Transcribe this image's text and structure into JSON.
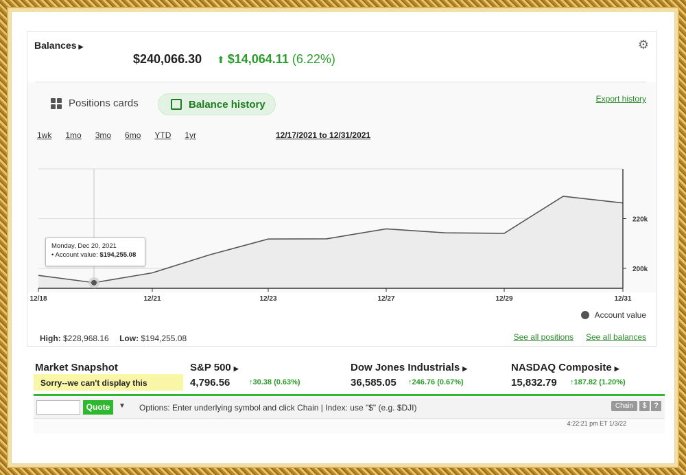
{
  "balances": {
    "title": "Balances",
    "value": "$240,066.30",
    "change_amount": "$14,064.11",
    "change_percent": "(6.22%)"
  },
  "tabs": {
    "positions_label": "Positions cards",
    "balance_label": "Balance history"
  },
  "export_label": "Export history",
  "ranges": [
    "1wk",
    "1mo",
    "3mo",
    "6mo",
    "YTD",
    "1yr"
  ],
  "date_range": "12/17/2021 to 12/31/2021",
  "tooltip": {
    "date": "Monday, Dec 20, 2021",
    "label": "Account value:",
    "value": "$194,255.08"
  },
  "legend": "Account value",
  "stats": {
    "high_label": "High:",
    "high_value": "$228,968.16",
    "low_label": "Low:",
    "low_value": "$194,255.08"
  },
  "links": {
    "see_positions": "See all positions",
    "see_balances": "See all balances"
  },
  "chart_data": {
    "type": "area",
    "x": [
      "12/18",
      "12/20",
      "12/21",
      "12/22",
      "12/23",
      "12/26",
      "12/27",
      "12/28",
      "12/29",
      "12/30",
      "12/31"
    ],
    "x_ticks": [
      "12/18",
      "12/21",
      "12/23",
      "12/27",
      "12/29",
      "12/31"
    ],
    "series": [
      {
        "values": [
          197200,
          194255,
          198200,
          205500,
          211800,
          211900,
          215900,
          214300,
          214100,
          228968,
          226300
        ]
      }
    ],
    "y_ticks": [
      "200k",
      "220k"
    ],
    "ylim": [
      192000,
      240000
    ],
    "grid": true,
    "area_color": "#ececec",
    "line_color": "#555555",
    "highlight_index": 1
  },
  "market_snapshot": {
    "title": "Market Snapshot",
    "sorry": "Sorry--we can't display this",
    "indices": [
      {
        "name": "S&P 500",
        "value": "4,796.56",
        "change": "30.38 (0.63%)"
      },
      {
        "name": "Dow Jones Industrials",
        "value": "36,585.05",
        "change": "246.76 (0.67%)"
      },
      {
        "name": "NASDAQ Composite",
        "value": "15,832.79",
        "change": "187.82 (1.20%)"
      }
    ]
  },
  "quote_bar": {
    "button": "Quote",
    "hint": "Options: Enter underlying symbol and click Chain | Index: use \"$\" (e.g. $DJI)",
    "chain": "Chain",
    "dollar": "$",
    "help": "?",
    "timestamp": "4:22:21 pm ET 1/3/22"
  },
  "colors": {
    "accent_green": "#2a9c2a",
    "bar_green": "#2db82d"
  }
}
